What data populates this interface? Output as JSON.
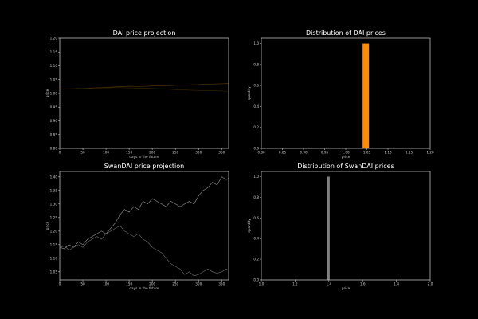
{
  "chart_data": [
    {
      "type": "line",
      "title": "DAI price projection",
      "xlabel": "days in the future",
      "ylabel": "price",
      "xlim": [
        0,
        365
      ],
      "ylim": [
        0.8,
        1.2
      ],
      "xticks": [
        0,
        50,
        100,
        150,
        200,
        250,
        300,
        350
      ],
      "yticks": [
        0.8,
        0.85,
        0.9,
        0.95,
        1.0,
        1.05,
        1.1,
        1.15,
        1.2
      ],
      "xtick_labels": [
        "0",
        "50",
        "100",
        "150",
        "200",
        "250",
        "300",
        "350"
      ],
      "ytick_labels": [
        "0.80",
        "0.85",
        "0.90",
        "0.95",
        "1.00",
        "1.05",
        "1.10",
        "1.15",
        "1.20"
      ],
      "series": [
        {
          "color": "#5a3a00",
          "x": [
            0,
            25,
            50,
            75,
            100,
            125,
            150,
            175,
            200,
            225,
            250,
            275,
            300,
            325,
            350,
            365
          ],
          "values": [
            1.015,
            1.017,
            1.018,
            1.02,
            1.022,
            1.024,
            1.026,
            1.025,
            1.027,
            1.028,
            1.029,
            1.031,
            1.032,
            1.034,
            1.035,
            1.036
          ]
        },
        {
          "color": "#3a2600",
          "x": [
            0,
            25,
            50,
            75,
            100,
            125,
            150,
            175,
            200,
            225,
            250,
            275,
            300,
            325,
            350,
            365
          ],
          "values": [
            1.015,
            1.016,
            1.018,
            1.019,
            1.02,
            1.021,
            1.02,
            1.019,
            1.018,
            1.016,
            1.014,
            1.012,
            1.011,
            1.01,
            1.009,
            1.008
          ]
        }
      ]
    },
    {
      "type": "bar",
      "title": "Distribution of DAI prices",
      "xlabel": "price",
      "ylabel": "quantity",
      "xlim": [
        0.8,
        1.2
      ],
      "ylim": [
        0,
        1.05
      ],
      "xticks": [
        0.8,
        0.85,
        0.9,
        0.95,
        1.0,
        1.05,
        1.1,
        1.15,
        1.2
      ],
      "yticks": [
        0.0,
        0.2,
        0.4,
        0.6,
        0.8,
        1.0
      ],
      "xtick_labels": [
        "0.80",
        "0.85",
        "0.90",
        "0.95",
        "1.00",
        "1.05",
        "1.10",
        "1.15",
        "1.20"
      ],
      "ytick_labels": [
        "0.0",
        "0.2",
        "0.4",
        "0.6",
        "0.8",
        "1.0"
      ],
      "bars": [
        {
          "start": 1.04,
          "end": 1.055,
          "value": 1.0,
          "color": "#ff8c00"
        }
      ]
    },
    {
      "type": "line",
      "title": "SwanDAI price projection",
      "xlabel": "days in the future",
      "ylabel": "price",
      "xlim": [
        0,
        365
      ],
      "ylim": [
        1.02,
        1.42
      ],
      "xticks": [
        0,
        50,
        100,
        150,
        200,
        250,
        300,
        350
      ],
      "yticks": [
        1.05,
        1.1,
        1.15,
        1.2,
        1.25,
        1.3,
        1.35,
        1.4
      ],
      "xtick_labels": [
        "0",
        "50",
        "100",
        "150",
        "200",
        "250",
        "300",
        "350"
      ],
      "ytick_labels": [
        "1.05",
        "1.10",
        "1.15",
        "1.20",
        "1.25",
        "1.30",
        "1.35",
        "1.40"
      ],
      "series": [
        {
          "color": "#9a9a9a",
          "x": [
            0,
            10,
            20,
            30,
            40,
            50,
            60,
            70,
            80,
            90,
            100,
            110,
            120,
            130,
            140,
            150,
            160,
            170,
            180,
            190,
            200,
            210,
            220,
            230,
            240,
            250,
            260,
            270,
            280,
            290,
            300,
            310,
            320,
            330,
            340,
            350,
            360,
            365
          ],
          "values": [
            1.14,
            1.135,
            1.15,
            1.14,
            1.16,
            1.15,
            1.17,
            1.18,
            1.19,
            1.2,
            1.19,
            1.21,
            1.23,
            1.26,
            1.28,
            1.27,
            1.29,
            1.28,
            1.31,
            1.3,
            1.32,
            1.31,
            1.3,
            1.29,
            1.31,
            1.3,
            1.29,
            1.3,
            1.31,
            1.3,
            1.33,
            1.35,
            1.36,
            1.38,
            1.37,
            1.4,
            1.39,
            1.395
          ]
        },
        {
          "color": "#6e6e6e",
          "x": [
            0,
            10,
            20,
            30,
            40,
            50,
            60,
            70,
            80,
            90,
            100,
            110,
            120,
            130,
            140,
            150,
            160,
            170,
            180,
            190,
            200,
            210,
            220,
            230,
            240,
            250,
            260,
            270,
            280,
            290,
            300,
            310,
            320,
            330,
            340,
            350,
            360,
            365
          ],
          "values": [
            1.14,
            1.145,
            1.13,
            1.14,
            1.15,
            1.14,
            1.16,
            1.17,
            1.18,
            1.17,
            1.19,
            1.2,
            1.21,
            1.22,
            1.2,
            1.19,
            1.18,
            1.19,
            1.17,
            1.16,
            1.14,
            1.13,
            1.12,
            1.1,
            1.08,
            1.07,
            1.06,
            1.04,
            1.05,
            1.035,
            1.04,
            1.05,
            1.06,
            1.05,
            1.045,
            1.05,
            1.06,
            1.055
          ]
        }
      ]
    },
    {
      "type": "bar",
      "title": "Distribution of SwanDAI prices",
      "xlabel": "price",
      "ylabel": "quantity",
      "xlim": [
        1.0,
        2.0
      ],
      "ylim": [
        0,
        1.05
      ],
      "xticks": [
        1.0,
        1.2,
        1.4,
        1.6,
        1.8,
        2.0
      ],
      "yticks": [
        0.0,
        0.2,
        0.4,
        0.6,
        0.8,
        1.0
      ],
      "xtick_labels": [
        "1.0",
        "1.2",
        "1.4",
        "1.6",
        "1.8",
        "2.0"
      ],
      "ytick_labels": [
        "0.0",
        "0.2",
        "0.4",
        "0.6",
        "0.8",
        "1.0"
      ],
      "bars": [
        {
          "start": 1.39,
          "end": 1.405,
          "value": 1.0,
          "color": "#808080"
        }
      ]
    }
  ]
}
